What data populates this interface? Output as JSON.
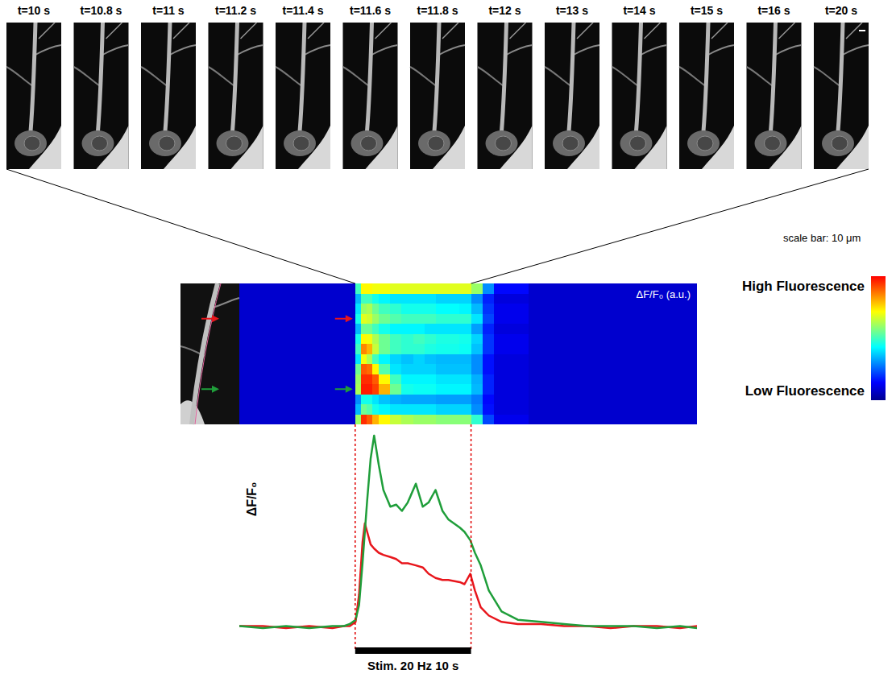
{
  "image_strip": {
    "frames": [
      "t=10 s",
      "t=10.8 s",
      "t=11 s",
      "t=11.2 s",
      "t=11.4 s",
      "t=11.6 s",
      "t=11.8 s",
      "t=12 s",
      "t=13 s",
      "t=14 s",
      "t=15 s",
      "t=16 s",
      "t=20 s"
    ],
    "scale_bar": "scale bar: 10 μm"
  },
  "chart_data": [
    {
      "type": "heatmap",
      "title": "ΔF/F₀ (a.u.)",
      "tick_labels": false,
      "xlim": [
        0,
        39.5
      ],
      "x_edges": [
        0,
        10,
        10.5,
        11,
        11.5,
        12,
        13,
        14,
        15,
        16,
        17,
        18,
        19,
        20,
        21,
        22,
        25,
        39.5
      ],
      "values": [
        [
          0.08,
          0.5,
          0.72,
          0.72,
          0.7,
          0.7,
          0.68,
          0.68,
          0.68,
          0.68,
          0.68,
          0.68,
          0.68,
          0.6,
          0.3,
          0.15,
          0.08
        ],
        [
          0.08,
          0.35,
          0.5,
          0.5,
          0.45,
          0.42,
          0.4,
          0.4,
          0.4,
          0.4,
          0.38,
          0.38,
          0.38,
          0.3,
          0.18,
          0.1,
          0.08
        ],
        [
          0.08,
          0.4,
          0.6,
          0.62,
          0.55,
          0.5,
          0.48,
          0.45,
          0.45,
          0.45,
          0.43,
          0.43,
          0.42,
          0.35,
          0.2,
          0.12,
          0.08
        ],
        [
          0.08,
          0.45,
          0.68,
          0.66,
          0.6,
          0.55,
          0.52,
          0.5,
          0.5,
          0.5,
          0.48,
          0.48,
          0.48,
          0.4,
          0.22,
          0.12,
          0.08
        ],
        [
          0.08,
          0.35,
          0.55,
          0.55,
          0.5,
          0.45,
          0.42,
          0.42,
          0.42,
          0.4,
          0.4,
          0.4,
          0.4,
          0.32,
          0.18,
          0.1,
          0.08
        ],
        [
          0.08,
          0.45,
          0.72,
          0.7,
          0.62,
          0.55,
          0.5,
          0.48,
          0.5,
          0.48,
          0.46,
          0.46,
          0.45,
          0.38,
          0.2,
          0.12,
          0.08
        ],
        [
          0.08,
          0.5,
          0.85,
          0.8,
          0.65,
          0.55,
          0.5,
          0.48,
          0.48,
          0.46,
          0.45,
          0.45,
          0.44,
          0.36,
          0.2,
          0.12,
          0.08
        ],
        [
          0.08,
          0.4,
          0.7,
          0.62,
          0.5,
          0.42,
          0.38,
          0.36,
          0.38,
          0.36,
          0.35,
          0.35,
          0.35,
          0.3,
          0.16,
          0.1,
          0.08
        ],
        [
          0.08,
          0.55,
          0.9,
          0.88,
          0.72,
          0.52,
          0.4,
          0.38,
          0.38,
          0.38,
          0.36,
          0.36,
          0.36,
          0.3,
          0.16,
          0.1,
          0.08
        ],
        [
          0.08,
          0.6,
          0.95,
          0.95,
          0.9,
          0.72,
          0.5,
          0.42,
          0.42,
          0.42,
          0.4,
          0.4,
          0.4,
          0.34,
          0.18,
          0.1,
          0.08
        ],
        [
          0.08,
          0.62,
          0.97,
          0.97,
          0.93,
          0.8,
          0.55,
          0.45,
          0.44,
          0.44,
          0.42,
          0.42,
          0.42,
          0.35,
          0.18,
          0.1,
          0.08
        ],
        [
          0.08,
          0.3,
          0.45,
          0.45,
          0.4,
          0.36,
          0.34,
          0.33,
          0.33,
          0.33,
          0.32,
          0.32,
          0.32,
          0.28,
          0.15,
          0.1,
          0.08
        ],
        [
          0.08,
          0.35,
          0.55,
          0.52,
          0.45,
          0.42,
          0.4,
          0.4,
          0.4,
          0.4,
          0.38,
          0.38,
          0.38,
          0.3,
          0.16,
          0.1,
          0.08
        ],
        [
          0.08,
          0.6,
          0.95,
          0.9,
          0.8,
          0.72,
          0.65,
          0.62,
          0.6,
          0.6,
          0.58,
          0.58,
          0.58,
          0.48,
          0.22,
          0.12,
          0.08
        ]
      ],
      "arrows": [
        {
          "row": 3,
          "color": "#e8161c"
        },
        {
          "row": 10,
          "color": "#1f9e3a"
        }
      ],
      "colorbar": {
        "range": [
          0,
          1
        ],
        "colors": [
          "#00008f",
          "#0000ff",
          "#0080ff",
          "#00ffff",
          "#80ff80",
          "#ffff00",
          "#ff8000",
          "#ff0000"
        ],
        "labels": {
          "high": "High Fluorescence",
          "low": "Low Fluorescence"
        }
      }
    },
    {
      "type": "line",
      "y_label": "ΔF/F₀",
      "tick_labels": false,
      "xlim": [
        0,
        39.5
      ],
      "ylim": [
        0,
        1
      ],
      "x": [
        0,
        2,
        4,
        6,
        8,
        9,
        9.5,
        10,
        10.3,
        10.6,
        10.8,
        11,
        11.3,
        11.6,
        12,
        12.4,
        13,
        13.5,
        14,
        14.5,
        15.2,
        15.8,
        16.3,
        16.9,
        17.5,
        18,
        19,
        19.4,
        19.9,
        20.3,
        20.8,
        21.5,
        22.6,
        24,
        26,
        28,
        30,
        32,
        34,
        36,
        38,
        39.5
      ],
      "series": [
        {
          "color": "#e8161c",
          "values": [
            0.05,
            0.05,
            0.04,
            0.05,
            0.04,
            0.05,
            0.05,
            0.07,
            0.2,
            0.45,
            0.54,
            0.5,
            0.44,
            0.42,
            0.4,
            0.39,
            0.38,
            0.37,
            0.35,
            0.35,
            0.34,
            0.33,
            0.3,
            0.28,
            0.27,
            0.27,
            0.26,
            0.25,
            0.3,
            0.22,
            0.14,
            0.1,
            0.07,
            0.06,
            0.06,
            0.05,
            0.05,
            0.04,
            0.05,
            0.05,
            0.04,
            0.05
          ]
        },
        {
          "color": "#1f9e3a",
          "values": [
            0.05,
            0.04,
            0.05,
            0.04,
            0.05,
            0.05,
            0.06,
            0.08,
            0.15,
            0.35,
            0.5,
            0.65,
            0.85,
            0.96,
            0.82,
            0.7,
            0.62,
            0.63,
            0.6,
            0.64,
            0.73,
            0.62,
            0.64,
            0.7,
            0.6,
            0.56,
            0.52,
            0.5,
            0.46,
            0.4,
            0.34,
            0.22,
            0.12,
            0.08,
            0.07,
            0.06,
            0.05,
            0.05,
            0.05,
            0.04,
            0.05,
            0.04
          ]
        }
      ],
      "stimulus": {
        "start": 10,
        "end": 20,
        "label": "Stim. 20 Hz 10 s"
      }
    }
  ]
}
